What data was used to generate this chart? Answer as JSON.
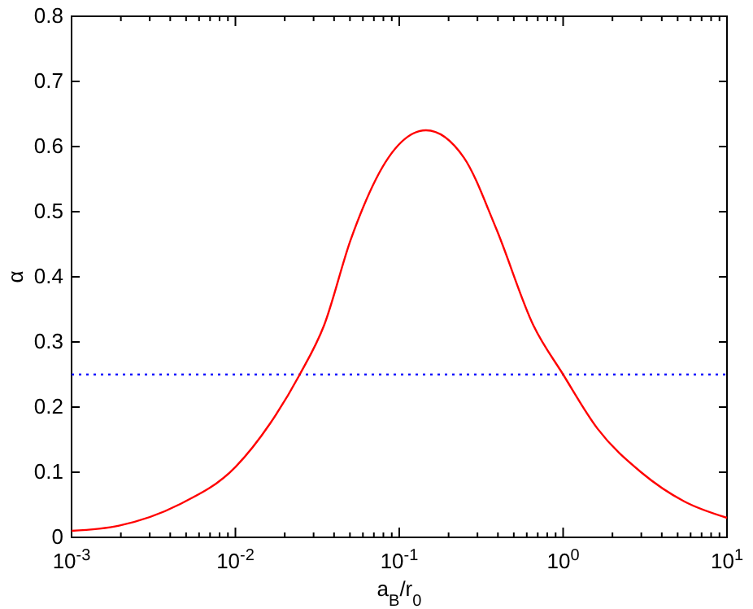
{
  "chart_data": {
    "type": "line",
    "xlabel": "a$_{B}$/r$_{0}$",
    "ylabel": "α",
    "log": "x",
    "grid": false,
    "marker": "none",
    "line_style": "solid",
    "xlim": [
      0.001,
      10
    ],
    "ylim": [
      0,
      0.8
    ],
    "xticks": [
      {
        "value": 0.001,
        "label": "10$^{-3}$"
      },
      {
        "value": 0.002,
        "label": null
      },
      {
        "value": 0.003,
        "label": null
      },
      {
        "value": 0.004,
        "label": null
      },
      {
        "value": 0.005,
        "label": null
      },
      {
        "value": 0.006,
        "label": null
      },
      {
        "value": 0.007,
        "label": null
      },
      {
        "value": 0.008,
        "label": null
      },
      {
        "value": 0.009,
        "label": null
      },
      {
        "value": 0.01,
        "label": "10$^{-2}$"
      },
      {
        "value": 0.02,
        "label": null
      },
      {
        "value": 0.03,
        "label": null
      },
      {
        "value": 0.04,
        "label": null
      },
      {
        "value": 0.05,
        "label": null
      },
      {
        "value": 0.06,
        "label": null
      },
      {
        "value": 0.07,
        "label": null
      },
      {
        "value": 0.08,
        "label": null
      },
      {
        "value": 0.09,
        "label": null
      },
      {
        "value": 0.1,
        "label": "10$^{-1}$"
      },
      {
        "value": 0.2,
        "label": null
      },
      {
        "value": 0.3,
        "label": null
      },
      {
        "value": 0.4,
        "label": null
      },
      {
        "value": 0.5,
        "label": null
      },
      {
        "value": 0.6,
        "label": null
      },
      {
        "value": 0.7,
        "label": null
      },
      {
        "value": 0.8,
        "label": null
      },
      {
        "value": 0.9,
        "label": null
      },
      {
        "value": 1,
        "label": "10$^{0}$"
      },
      {
        "value": 2,
        "label": null
      },
      {
        "value": 3,
        "label": null
      },
      {
        "value": 4,
        "label": null
      },
      {
        "value": 5,
        "label": null
      },
      {
        "value": 6,
        "label": null
      },
      {
        "value": 7,
        "label": null
      },
      {
        "value": 8,
        "label": null
      },
      {
        "value": 9,
        "label": null
      },
      {
        "value": 10,
        "label": "10$^{1}$"
      }
    ],
    "yticks": [
      0,
      0.1,
      0.2,
      0.3,
      0.4,
      0.5,
      0.6,
      0.7,
      0.8
    ],
    "series": [
      {
        "color": "#ff0000",
        "x": [
          0.001,
          0.00195,
          0.0045,
          0.01,
          0.0163,
          0.0247,
          0.0347,
          0.0507,
          0.0859,
          0.1456,
          0.248,
          0.389,
          0.66,
          1.0,
          1.62,
          2.99,
          5.5,
          10
        ],
        "values": [
          0.01,
          0.018,
          0.05,
          0.108,
          0.175,
          0.25,
          0.325,
          0.458,
          0.583,
          0.625,
          0.583,
          0.475,
          0.325,
          0.25,
          0.167,
          0.1,
          0.055,
          0.03
        ]
      }
    ],
    "ref_lines": [
      {
        "axis": "y",
        "value": 0.25,
        "color": "#0000ff",
        "line_style": "dotted"
      }
    ]
  }
}
